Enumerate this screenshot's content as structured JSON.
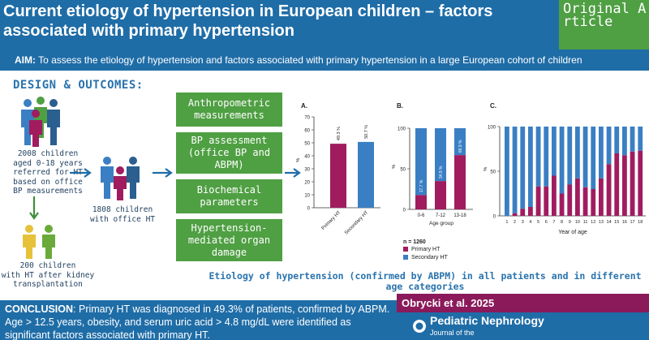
{
  "header": {
    "title": "Current etiology of hypertension in European children – factors associated with primary hypertension",
    "badge": "Original Article"
  },
  "aim": {
    "label": "AIM:",
    "text": "To assess the etiology of hypertension and factors associated with primary hypertension in a large European cohort of children"
  },
  "design": {
    "title": "DESIGN & OUTCOMES:",
    "group1": [
      "2008 children",
      "aged 0-18 years",
      "referred for HT",
      "based on office",
      "BP measurements"
    ],
    "group2": [
      "1808 children",
      "with office HT"
    ],
    "group3": [
      "200 children",
      "with HT after kidney",
      "transplantation"
    ]
  },
  "assessments": [
    [
      "Anthropometric",
      "measurements"
    ],
    [
      "BP assessment",
      "(office BP and",
      "ABPM)"
    ],
    [
      "Biochemical",
      "parameters"
    ],
    [
      "Hypertension-",
      "mediated organ",
      "damage"
    ]
  ],
  "colors": {
    "primary_ht": "#a01c5f",
    "secondary_ht": "#3a7fc4",
    "header": "#1f6da7",
    "badge": "#4f9f43",
    "citation": "#8b1a5b"
  },
  "chart_data": [
    {
      "label": "A.",
      "type": "bar",
      "categories": [
        "Primary HT",
        "Secondary HT"
      ],
      "values": [
        49.3,
        50.7
      ],
      "data_labels": [
        "49.3 %",
        "50.7 %"
      ],
      "ylabel": "%",
      "ylim": [
        0,
        70
      ],
      "yticks": [
        0,
        10,
        20,
        30,
        40,
        50,
        60,
        70
      ]
    },
    {
      "label": "B.",
      "type": "bar",
      "stacked": true,
      "categories": [
        "0-6",
        "7-12",
        "13-18"
      ],
      "xlabel": "Age group",
      "ylabel": "%",
      "ylim": [
        0,
        100
      ],
      "yticks": [
        0,
        50,
        100
      ],
      "series": [
        {
          "name": "Primary HT",
          "values": [
            17.7,
            34.9,
            66.9
          ]
        },
        {
          "name": "Secondary HT",
          "values": [
            82.3,
            65.1,
            33.1
          ]
        }
      ],
      "data_labels": [
        "17.7 %",
        "34.9 %",
        "66.9 %"
      ],
      "legend": {
        "n": "n = 1260",
        "entries": [
          "Primary HT",
          "Secondary HT"
        ]
      }
    },
    {
      "label": "C.",
      "type": "bar",
      "stacked": true,
      "categories": [
        "1",
        "2",
        "3",
        "4",
        "5",
        "6",
        "7",
        "8",
        "9",
        "10",
        "11",
        "12",
        "13",
        "14",
        "15",
        "16",
        "17",
        "18"
      ],
      "xlabel": "Year of age",
      "ylabel": "%",
      "ylim": [
        0,
        100
      ],
      "yticks": [
        0,
        50,
        100
      ],
      "series": [
        {
          "name": "Primary HT",
          "values": [
            0,
            3,
            8,
            10,
            33,
            33,
            45,
            25,
            35,
            42,
            32,
            30,
            42,
            58,
            70,
            68,
            72,
            73
          ]
        },
        {
          "name": "Secondary HT",
          "values": [
            100,
            97,
            92,
            90,
            67,
            67,
            55,
            75,
            65,
            58,
            68,
            70,
            58,
            42,
            30,
            32,
            28,
            27
          ]
        }
      ]
    }
  ],
  "caption": "Etiology of hypertension (confirmed by ABPM) in all patients and in different age categories",
  "conclusion": {
    "label": "CONCLUSION",
    "text": ": Primary HT was diagnosed in 49.3% of patients, confirmed by ABPM. Age > 12.5 years, obesity, and serum uric acid  > 4.8 mg/dL were identified as significant factors associated with primary HT."
  },
  "citation": "Obrycki et al. 2025",
  "journal": {
    "name": "Pediatric Nephrology",
    "subtitle": "Journal of the"
  }
}
